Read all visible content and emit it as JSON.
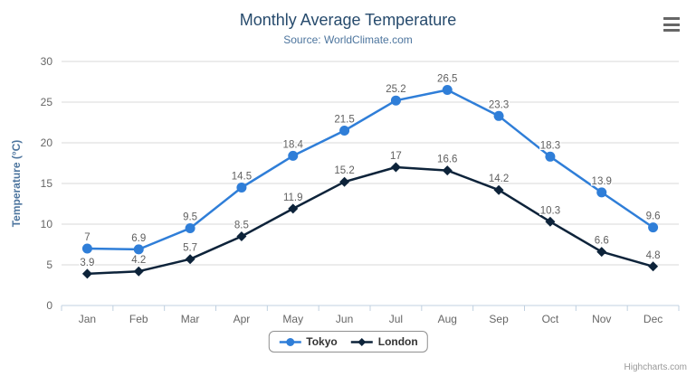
{
  "title": "Monthly Average Temperature",
  "subtitle": "Source: WorldClimate.com",
  "credits": "Highcharts.com",
  "colors": {
    "title": "#274b6d",
    "subtitle": "#4d759e",
    "axis_title": "#4d759e",
    "axis_labels": "#666666",
    "data_labels": "#606060",
    "grid": "#d8d8d8",
    "axis_line": "#c0d0e0",
    "legend_border": "#909090",
    "legend_text": "#333333",
    "credits": "#999999",
    "menu_icon": "#666666"
  },
  "chart_data": {
    "type": "line",
    "title": "Monthly Average Temperature",
    "subtitle": "Source: WorldClimate.com",
    "categories": [
      "Jan",
      "Feb",
      "Mar",
      "Apr",
      "May",
      "Jun",
      "Jul",
      "Aug",
      "Sep",
      "Oct",
      "Nov",
      "Dec"
    ],
    "series": [
      {
        "name": "Tokyo",
        "color": "#2f7ed8",
        "marker": "circle",
        "values": [
          7,
          6.9,
          9.5,
          14.5,
          18.4,
          21.5,
          25.2,
          26.5,
          23.3,
          18.3,
          13.9,
          9.6
        ]
      },
      {
        "name": "London",
        "color": "#0d233a",
        "marker": "diamond",
        "values": [
          3.9,
          4.2,
          5.7,
          8.5,
          11.9,
          15.2,
          17,
          16.6,
          14.2,
          10.3,
          6.6,
          4.8
        ]
      }
    ],
    "xlabel": "",
    "ylabel": "Temperature (°C)",
    "ylim": [
      0,
      30
    ],
    "ytick_step": 5,
    "grid": true,
    "legend_position": "bottom",
    "data_labels": true
  }
}
